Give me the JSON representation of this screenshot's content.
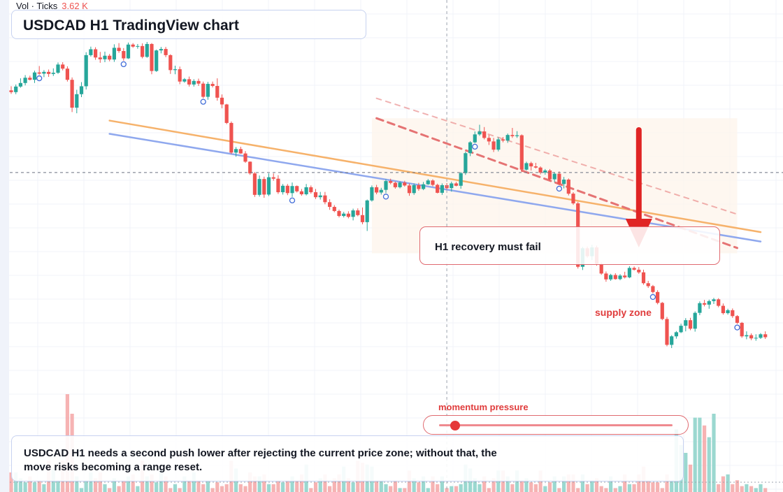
{
  "header": {
    "title": "USDCAD H1 TradingView chart",
    "volume_legend": {
      "label": "Vol · Ticks",
      "value": "3.62 K"
    }
  },
  "annotations": {
    "recovery_callout": "H1 recovery must fail",
    "supply_label": "supply zone",
    "momentum_label": "momentum pressure",
    "momentum_level": 0.07,
    "note": "USDCAD H1 needs a second push lower after rejecting the current price zone; without that, the move risks becoming a range reset."
  },
  "colors": {
    "up": "#26a69a",
    "down": "#ef5350",
    "arrow": "#e02424",
    "trend_orange": "#f6b26b",
    "trend_blue": "#8fa8ee",
    "channel_red": "#e57373",
    "marker": "#3f6bd8"
  },
  "chart_data": {
    "type": "candlestick",
    "title": "USDCAD H1 TradingView chart",
    "xlabel": "",
    "ylabel": "",
    "ylim": [
      0,
      100
    ],
    "grid": true,
    "candles": [
      [
        83.5,
        84.9,
        82.3,
        82.9
      ],
      [
        82.9,
        85.5,
        82.2,
        84.8
      ],
      [
        84.8,
        87.6,
        84.4,
        86.0
      ],
      [
        86.0,
        88.7,
        85.2,
        87.8
      ],
      [
        87.8,
        88.5,
        86.9,
        87.1
      ],
      [
        87.1,
        90.2,
        86.0,
        89.6
      ],
      [
        89.6,
        91.8,
        88.8,
        89.2
      ],
      [
        89.2,
        90.4,
        88.0,
        89.8
      ],
      [
        89.8,
        90.6,
        88.1,
        89.1
      ],
      [
        89.1,
        91.0,
        88.4,
        89.5
      ],
      [
        89.5,
        93.0,
        89.1,
        92.3
      ],
      [
        92.3,
        93.1,
        90.3,
        90.9
      ],
      [
        90.9,
        91.7,
        86.5,
        87.1
      ],
      [
        87.1,
        87.9,
        76.1,
        77.6
      ],
      [
        77.6,
        83.7,
        75.7,
        82.2
      ],
      [
        82.2,
        86.3,
        81.2,
        84.9
      ],
      [
        84.9,
        96.5,
        83.8,
        95.5
      ],
      [
        95.5,
        98.4,
        95.0,
        97.5
      ],
      [
        97.5,
        98.2,
        93.9,
        94.7
      ],
      [
        94.7,
        96.6,
        92.9,
        94.1
      ],
      [
        94.1,
        96.7,
        93.1,
        95.3
      ],
      [
        95.3,
        95.9,
        93.4,
        94.0
      ],
      [
        94.0,
        99.2,
        93.2,
        98.0
      ],
      [
        98.0,
        99.6,
        96.3,
        96.9
      ],
      [
        96.9,
        97.9,
        93.6,
        94.4
      ],
      [
        94.4,
        99.8,
        94.2,
        99.1
      ],
      [
        99.1,
        99.6,
        98.0,
        98.4
      ],
      [
        98.4,
        99.3,
        97.7,
        98.6
      ],
      [
        98.6,
        99.5,
        94.4,
        94.9
      ],
      [
        94.9,
        100.0,
        94.6,
        99.3
      ],
      [
        99.3,
        99.6,
        89.0,
        90.1
      ],
      [
        90.1,
        97.4,
        89.8,
        97.1
      ],
      [
        97.1,
        98.3,
        96.1,
        97.6
      ],
      [
        97.6,
        98.3,
        94.8,
        95.5
      ],
      [
        95.5,
        95.8,
        89.1,
        90.4
      ],
      [
        90.4,
        91.9,
        89.0,
        90.7
      ],
      [
        90.7,
        91.6,
        85.6,
        86.5
      ],
      [
        86.5,
        87.7,
        86.1,
        87.3
      ],
      [
        87.3,
        88.2,
        84.8,
        85.5
      ],
      [
        85.5,
        87.3,
        84.8,
        86.7
      ],
      [
        86.7,
        87.5,
        85.0,
        85.8
      ],
      [
        85.8,
        86.5,
        80.8,
        81.3
      ],
      [
        81.3,
        86.4,
        80.3,
        85.7
      ],
      [
        85.7,
        86.5,
        84.5,
        85.0
      ],
      [
        85.0,
        87.6,
        80.0,
        81.0
      ],
      [
        81.0,
        82.1,
        77.4,
        78.7
      ],
      [
        78.7,
        78.9,
        72.0,
        72.4
      ],
      [
        72.4,
        72.9,
        61.8,
        62.3
      ],
      [
        62.3,
        64.2,
        60.9,
        63.5
      ],
      [
        63.5,
        64.3,
        61.9,
        62.0
      ],
      [
        62.0,
        62.8,
        58.8,
        59.2
      ],
      [
        59.2,
        59.3,
        54.7,
        55.2
      ],
      [
        55.2,
        55.7,
        47.2,
        47.9
      ],
      [
        47.9,
        54.5,
        47.3,
        53.3
      ],
      [
        53.3,
        54.1,
        46.9,
        48.0
      ],
      [
        48.0,
        55.2,
        47.5,
        53.9
      ],
      [
        53.9,
        55.2,
        52.7,
        53.4
      ],
      [
        53.4,
        54.6,
        48.2,
        48.8
      ],
      [
        48.8,
        51.6,
        48.0,
        51.0
      ],
      [
        51.0,
        51.6,
        47.8,
        48.5
      ],
      [
        48.5,
        52.1,
        47.2,
        50.9
      ],
      [
        50.9,
        51.1,
        48.7,
        49.1
      ],
      [
        49.1,
        49.9,
        47.6,
        48.1
      ],
      [
        48.1,
        51.6,
        47.7,
        50.5
      ],
      [
        50.5,
        51.1,
        48.3,
        48.8
      ],
      [
        48.8,
        49.9,
        46.5,
        47.1
      ],
      [
        47.1,
        48.9,
        46.3,
        47.7
      ],
      [
        47.7,
        48.9,
        44.7,
        45.4
      ],
      [
        45.4,
        46.4,
        42.8,
        43.8
      ],
      [
        43.8,
        44.4,
        42.0,
        42.4
      ],
      [
        42.4,
        42.9,
        40.2,
        40.7
      ],
      [
        40.7,
        42.1,
        40.2,
        41.5
      ],
      [
        41.5,
        42.3,
        39.9,
        40.4
      ],
      [
        40.4,
        43.2,
        39.2,
        42.6
      ],
      [
        42.6,
        43.3,
        40.6,
        41.0
      ],
      [
        41.0,
        43.6,
        37.9,
        38.6
      ],
      [
        38.6,
        46.3,
        35.6,
        46.0
      ],
      [
        46.0,
        51.1,
        45.6,
        50.5
      ],
      [
        50.5,
        51.3,
        48.1,
        48.7
      ],
      [
        48.7,
        50.3,
        48.0,
        49.6
      ],
      [
        49.6,
        53.2,
        48.5,
        52.6
      ],
      [
        52.6,
        53.4,
        51.5,
        52.0
      ],
      [
        52.0,
        52.4,
        50.0,
        50.5
      ],
      [
        50.5,
        52.5,
        50.1,
        52.1
      ],
      [
        52.1,
        52.7,
        50.7,
        51.1
      ],
      [
        51.1,
        51.8,
        47.6,
        48.5
      ],
      [
        48.5,
        51.8,
        47.9,
        51.2
      ],
      [
        51.2,
        52.0,
        49.3,
        49.9
      ],
      [
        49.9,
        52.3,
        49.5,
        51.5
      ],
      [
        51.5,
        53.3,
        51.3,
        52.8
      ],
      [
        52.8,
        53.2,
        50.8,
        51.3
      ],
      [
        51.3,
        51.7,
        48.4,
        48.6
      ],
      [
        48.6,
        51.8,
        47.9,
        51.2
      ],
      [
        51.2,
        51.9,
        49.7,
        50.2
      ],
      [
        50.2,
        52.4,
        49.0,
        51.8
      ],
      [
        51.8,
        52.3,
        50.8,
        51.0
      ],
      [
        51.0,
        55.7,
        50.0,
        55.3
      ],
      [
        55.3,
        62.6,
        54.7,
        62.1
      ],
      [
        62.1,
        66.2,
        61.1,
        65.8
      ],
      [
        65.8,
        69.5,
        65.5,
        68.5
      ],
      [
        68.5,
        71.8,
        68.0,
        69.5
      ],
      [
        69.5,
        71.0,
        66.8,
        67.3
      ],
      [
        67.3,
        68.3,
        64.9,
        66.1
      ],
      [
        66.1,
        67.3,
        62.5,
        63.3
      ],
      [
        63.3,
        67.5,
        62.7,
        66.8
      ],
      [
        66.8,
        67.6,
        65.8,
        66.4
      ],
      [
        66.4,
        68.8,
        65.6,
        68.3
      ],
      [
        68.3,
        70.7,
        67.3,
        67.9
      ],
      [
        67.9,
        69.6,
        67.3,
        68.2
      ],
      [
        68.2,
        68.5,
        55.7,
        56.5
      ],
      [
        56.5,
        59.2,
        56.2,
        58.7
      ],
      [
        58.7,
        59.2,
        56.2,
        57.6
      ],
      [
        57.6,
        58.8,
        56.9,
        57.2
      ],
      [
        57.2,
        57.6,
        54.9,
        55.5
      ],
      [
        55.5,
        56.7,
        54.8,
        56.2
      ],
      [
        56.2,
        56.7,
        52.7,
        53.2
      ],
      [
        53.2,
        55.5,
        52.2,
        55.1
      ],
      [
        55.1,
        55.9,
        51.2,
        51.6
      ],
      [
        51.6,
        54.0,
        50.1,
        53.1
      ],
      [
        53.1,
        53.5,
        47.7,
        48.3
      ],
      [
        48.3,
        48.8,
        44.5,
        45.0
      ],
      [
        45.0,
        45.5,
        22.8,
        23.4
      ],
      [
        23.4,
        30.2,
        22.3,
        29.7
      ],
      [
        29.7,
        30.3,
        26.5,
        27.0
      ],
      [
        27.0,
        30.9,
        25.7,
        30.0
      ],
      [
        30.0,
        30.6,
        23.8,
        24.4
      ],
      [
        24.4,
        24.9,
        20.7,
        21.1
      ],
      [
        21.1,
        21.8,
        18.3,
        19.1
      ],
      [
        19.1,
        21.0,
        18.6,
        20.6
      ],
      [
        20.6,
        21.2,
        19.0,
        19.2
      ],
      [
        19.2,
        20.9,
        18.8,
        20.4
      ],
      [
        20.4,
        21.7,
        19.4,
        19.8
      ],
      [
        19.8,
        23.6,
        19.5,
        23.0
      ],
      [
        23.0,
        23.5,
        22.1,
        22.4
      ],
      [
        22.4,
        23.3,
        21.0,
        21.5
      ],
      [
        21.5,
        22.4,
        17.3,
        17.8
      ],
      [
        17.8,
        18.6,
        16.2,
        16.8
      ],
      [
        16.8,
        17.2,
        14.3,
        14.8
      ],
      [
        14.8,
        15.4,
        10.6,
        11.1
      ],
      [
        11.1,
        11.4,
        5.2,
        5.6
      ],
      [
        5.6,
        6.3,
        -3.7,
        -3.2
      ],
      [
        -3.2,
        0.1,
        -4.3,
        -0.3
      ],
      [
        -0.3,
        1.5,
        -1.1,
        1.1
      ],
      [
        1.1,
        4.0,
        0.8,
        3.3
      ],
      [
        3.3,
        5.9,
        1.4,
        5.2
      ],
      [
        5.2,
        6.0,
        1.8,
        2.3
      ],
      [
        2.3,
        8.2,
        1.3,
        7.7
      ],
      [
        7.7,
        11.6,
        6.9,
        11.0
      ],
      [
        11.0,
        12.1,
        9.9,
        10.5
      ],
      [
        10.5,
        12.2,
        9.1,
        11.7
      ],
      [
        11.7,
        12.8,
        10.7,
        12.3
      ],
      [
        12.3,
        12.7,
        9.6,
        10.1
      ],
      [
        10.1,
        10.9,
        7.1,
        7.6
      ],
      [
        7.6,
        9.1,
        7.1,
        8.6
      ],
      [
        8.6,
        9.2,
        6.0,
        6.6
      ],
      [
        6.6,
        6.9,
        3.9,
        4.3
      ],
      [
        4.3,
        4.6,
        -0.8,
        -0.3
      ],
      [
        -0.3,
        1.4,
        -1.3,
        0.1
      ],
      [
        0.1,
        0.7,
        -1.6,
        -1.0
      ],
      [
        -1.0,
        0.4,
        -1.8,
        -0.8
      ],
      [
        -0.8,
        0.8,
        -1.2,
        0.4
      ],
      [
        0.4,
        1.4,
        -1.2,
        -0.6
      ]
    ],
    "volumes": [
      10,
      10,
      7,
      5,
      8,
      5,
      6,
      4,
      16,
      12,
      6,
      16,
      50,
      40,
      8,
      2,
      6,
      10,
      7,
      10,
      4,
      2,
      7,
      3,
      6,
      8,
      9,
      3,
      16,
      8,
      9,
      5,
      11,
      8,
      2,
      4,
      2,
      8,
      6,
      10,
      6,
      4,
      6,
      2,
      5,
      3,
      4,
      16,
      12,
      4,
      3,
      10,
      8,
      8,
      9,
      4,
      4,
      6,
      5,
      6,
      8,
      6,
      9,
      14,
      2,
      5,
      7,
      9,
      3,
      7,
      9,
      13,
      7,
      5,
      16,
      15,
      14,
      13,
      6,
      6,
      4,
      3,
      6,
      2,
      2,
      11,
      7,
      5,
      8,
      2,
      8,
      4,
      8,
      2,
      3,
      3,
      4,
      14,
      12,
      7,
      4,
      8,
      2,
      7,
      11,
      11,
      8,
      4,
      11,
      6,
      7,
      5,
      4,
      11,
      3,
      5,
      8,
      2,
      8,
      9,
      9,
      2,
      9,
      4,
      6,
      7,
      3,
      2,
      8,
      2,
      3,
      9,
      4,
      4,
      9,
      13,
      6,
      5,
      5,
      2,
      9,
      6,
      32,
      24,
      20,
      14,
      38,
      38,
      34,
      28,
      40,
      4,
      8,
      9,
      4,
      6,
      3,
      4,
      3,
      2,
      4,
      2
    ],
    "volume_legend": {
      "label": "Vol · Ticks",
      "value": "3.62 K"
    },
    "reaction_markers": [
      6,
      24,
      41,
      60,
      80,
      99,
      117,
      137,
      155
    ],
    "trendlines": [
      {
        "style": "solid",
        "color": "orange",
        "from": [
          21,
          73.2
        ],
        "to": [
          160,
          35.2
        ]
      },
      {
        "style": "solid",
        "color": "blue",
        "from": [
          21,
          68.7
        ],
        "to": [
          160,
          32.0
        ]
      },
      {
        "style": "dashed",
        "color": "red",
        "from": [
          78,
          74.0
        ],
        "to": [
          155,
          29.8
        ]
      },
      {
        "style": "dashed-light",
        "color": "red",
        "from": [
          78,
          80.8
        ],
        "to": [
          155,
          41.3
        ]
      }
    ],
    "supply_zone": {
      "label": "supply zone",
      "x": [
        77,
        155
      ],
      "y": [
        28.0,
        74.0
      ]
    },
    "projected_move": {
      "from": 70.0,
      "to": 30.0,
      "at_index": 134
    },
    "current_price_level": 55.5,
    "current_time_index": 93
  }
}
